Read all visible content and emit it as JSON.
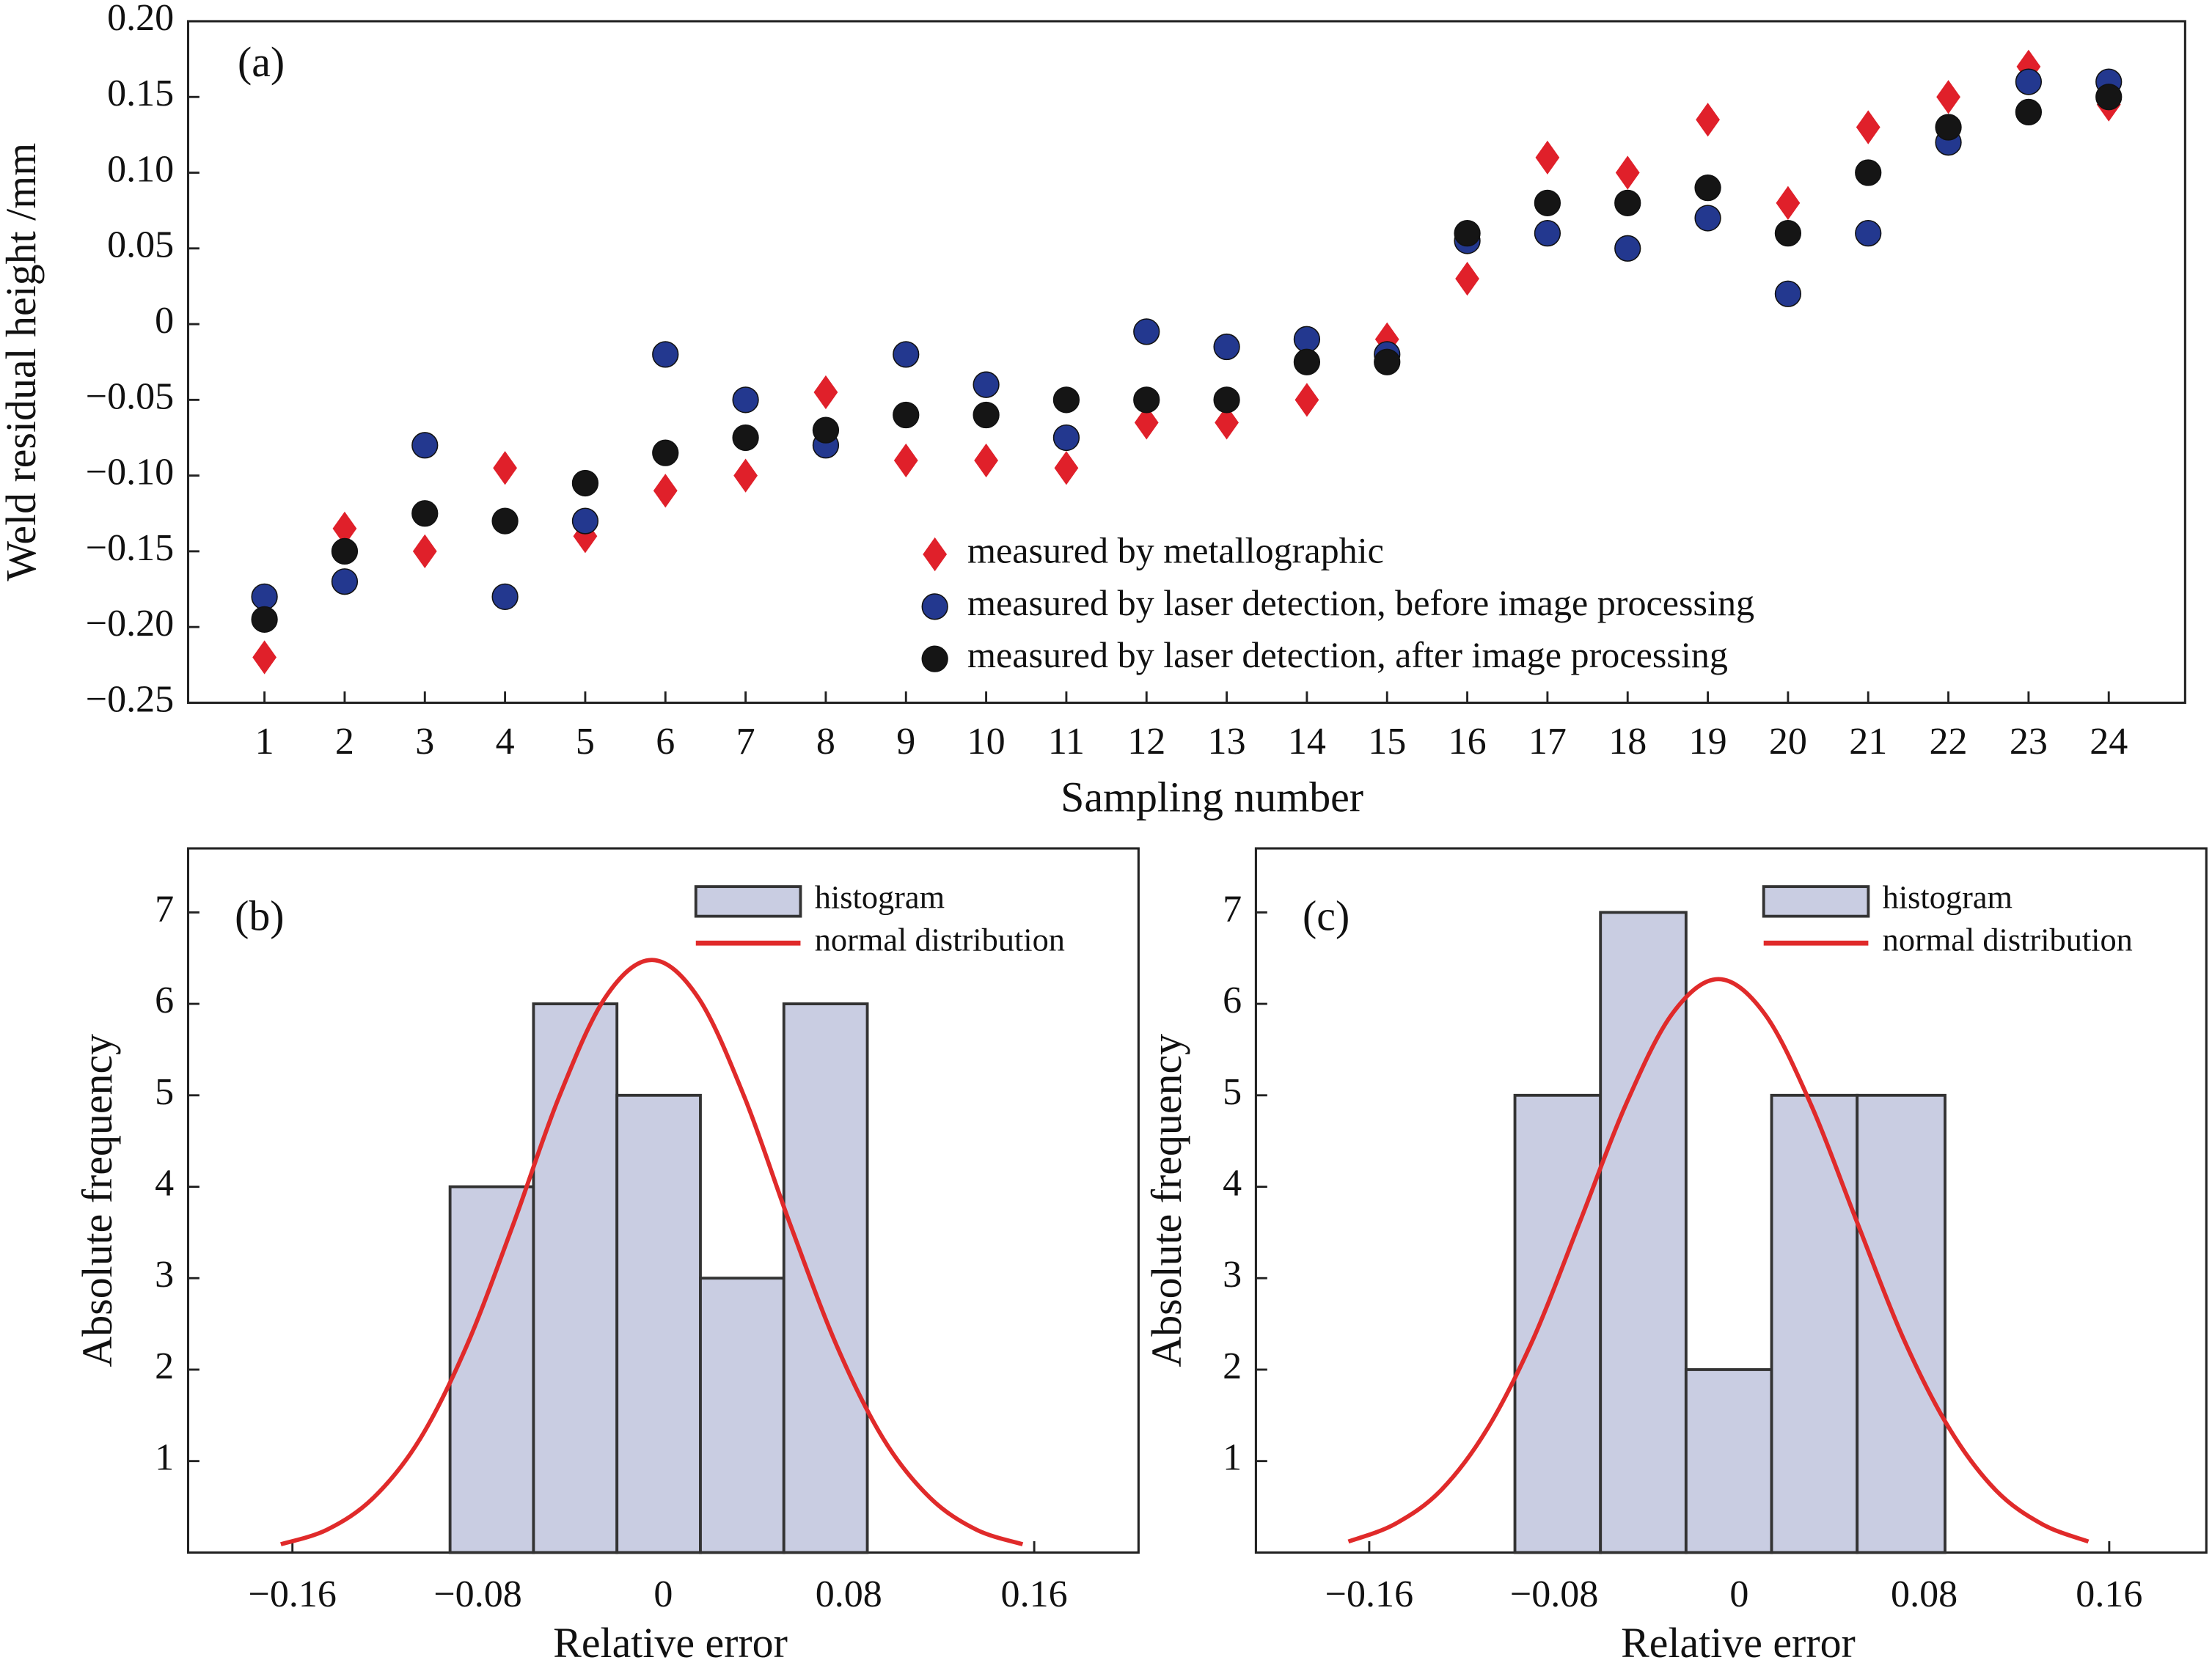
{
  "chart_data": [
    {
      "type": "scatter",
      "annotation": "(a)",
      "xlabel": "Sampling number",
      "ylabel": "Weld residual height /mm",
      "categories": [
        1,
        2,
        3,
        4,
        5,
        6,
        7,
        8,
        9,
        10,
        11,
        12,
        13,
        14,
        15,
        16,
        17,
        18,
        19,
        20,
        21,
        22,
        23,
        24
      ],
      "ylim": [
        -0.25,
        0.2
      ],
      "yticks": [
        {
          "value": 0.2,
          "label": "0.20"
        },
        0.15,
        {
          "value": 0.1,
          "label": "0.10"
        },
        0.05,
        0,
        {
          "value": -0.05,
          "label": "−0.05"
        },
        {
          "value": -0.1,
          "label": "−0.10"
        },
        {
          "value": -0.15,
          "label": "−0.15"
        },
        {
          "value": -0.2,
          "label": "−0.20"
        },
        {
          "value": -0.25,
          "label": "−0.25"
        }
      ],
      "series": [
        {
          "name": "measured by metallographic",
          "color": "#e0202a",
          "marker": "diamond",
          "values": [
            -0.22,
            -0.135,
            -0.15,
            -0.095,
            -0.14,
            -0.11,
            -0.1,
            -0.045,
            -0.09,
            -0.09,
            -0.095,
            -0.065,
            -0.065,
            -0.05,
            -0.01,
            0.03,
            0.11,
            0.1,
            0.135,
            0.08,
            0.13,
            0.15,
            0.17,
            0.145
          ]
        },
        {
          "name": "measured by laser detection, before image processing",
          "color": "#23388f",
          "marker": "circle",
          "values": [
            -0.18,
            -0.17,
            -0.08,
            -0.18,
            -0.13,
            -0.02,
            -0.05,
            -0.08,
            -0.02,
            -0.04,
            -0.075,
            -0.005,
            -0.015,
            -0.01,
            -0.02,
            0.055,
            0.06,
            0.05,
            0.07,
            0.02,
            0.06,
            0.12,
            0.16,
            0.16
          ]
        },
        {
          "name": "measured by laser detection, after image processing",
          "color": "#151515",
          "marker": "circle",
          "values": [
            -0.195,
            -0.15,
            -0.125,
            -0.13,
            -0.105,
            -0.085,
            -0.075,
            -0.07,
            -0.06,
            -0.06,
            -0.05,
            -0.05,
            -0.05,
            -0.025,
            -0.025,
            0.06,
            0.08,
            0.08,
            0.09,
            0.06,
            0.1,
            0.13,
            0.14,
            0.15
          ]
        }
      ]
    },
    {
      "type": "histogram",
      "annotation": "(b)",
      "xlabel": "Relative error",
      "ylabel": "Absolute frequency",
      "xlim": [
        -0.205,
        0.205
      ],
      "xticks": [
        {
          "value": -0.16,
          "label": "−0.16"
        },
        {
          "value": -0.08,
          "label": "−0.08"
        },
        0,
        0.08,
        0.16
      ],
      "ylim": [
        0,
        7.7
      ],
      "yticks": [
        1,
        2,
        3,
        4,
        5,
        6,
        7
      ],
      "series": [
        {
          "name": "histogram",
          "type": "histogram",
          "color": "#c9cde2",
          "bins": [
            -0.092,
            -0.056,
            -0.02,
            0.016,
            0.052,
            0.088
          ],
          "values": [
            4,
            6,
            5,
            3,
            6
          ]
        },
        {
          "name": "normal distribution",
          "type": "line",
          "color": "#e02a2a",
          "x": [
            -0.165,
            -0.145,
            -0.125,
            -0.105,
            -0.085,
            -0.065,
            -0.045,
            -0.025,
            -0.005,
            0.015,
            0.035,
            0.055,
            0.075,
            0.095,
            0.115,
            0.135,
            0.155
          ],
          "values": [
            0.09,
            0.25,
            0.6,
            1.24,
            2.25,
            3.57,
            4.98,
            6.07,
            6.48,
            6.07,
            4.98,
            3.57,
            2.25,
            1.24,
            0.6,
            0.25,
            0.09
          ]
        }
      ]
    },
    {
      "type": "histogram",
      "annotation": "(c)",
      "xlabel": "Relative error",
      "ylabel": "Absolute frequency",
      "xlim": [
        -0.209,
        0.202
      ],
      "xticks": [
        {
          "value": -0.16,
          "label": "−0.16"
        },
        {
          "value": -0.08,
          "label": "−0.08"
        },
        0,
        0.08,
        0.16
      ],
      "ylim": [
        0,
        7.7
      ],
      "yticks": [
        1,
        2,
        3,
        4,
        5,
        6,
        7
      ],
      "series": [
        {
          "name": "histogram",
          "type": "histogram",
          "color": "#c9cde2",
          "bins": [
            -0.097,
            -0.06,
            -0.023,
            0.014,
            0.051,
            0.089
          ],
          "values": [
            5,
            7,
            2,
            5,
            5
          ]
        },
        {
          "name": "normal distribution",
          "type": "line",
          "color": "#e02a2a",
          "x": [
            -0.169,
            -0.149,
            -0.129,
            -0.109,
            -0.089,
            -0.069,
            -0.049,
            -0.029,
            -0.009,
            0.011,
            0.031,
            0.051,
            0.071,
            0.091,
            0.111,
            0.131,
            0.151
          ],
          "values": [
            0.12,
            0.31,
            0.68,
            1.35,
            2.34,
            3.61,
            4.9,
            5.89,
            6.27,
            5.89,
            4.9,
            3.61,
            2.34,
            1.35,
            0.68,
            0.31,
            0.12
          ]
        }
      ]
    }
  ]
}
